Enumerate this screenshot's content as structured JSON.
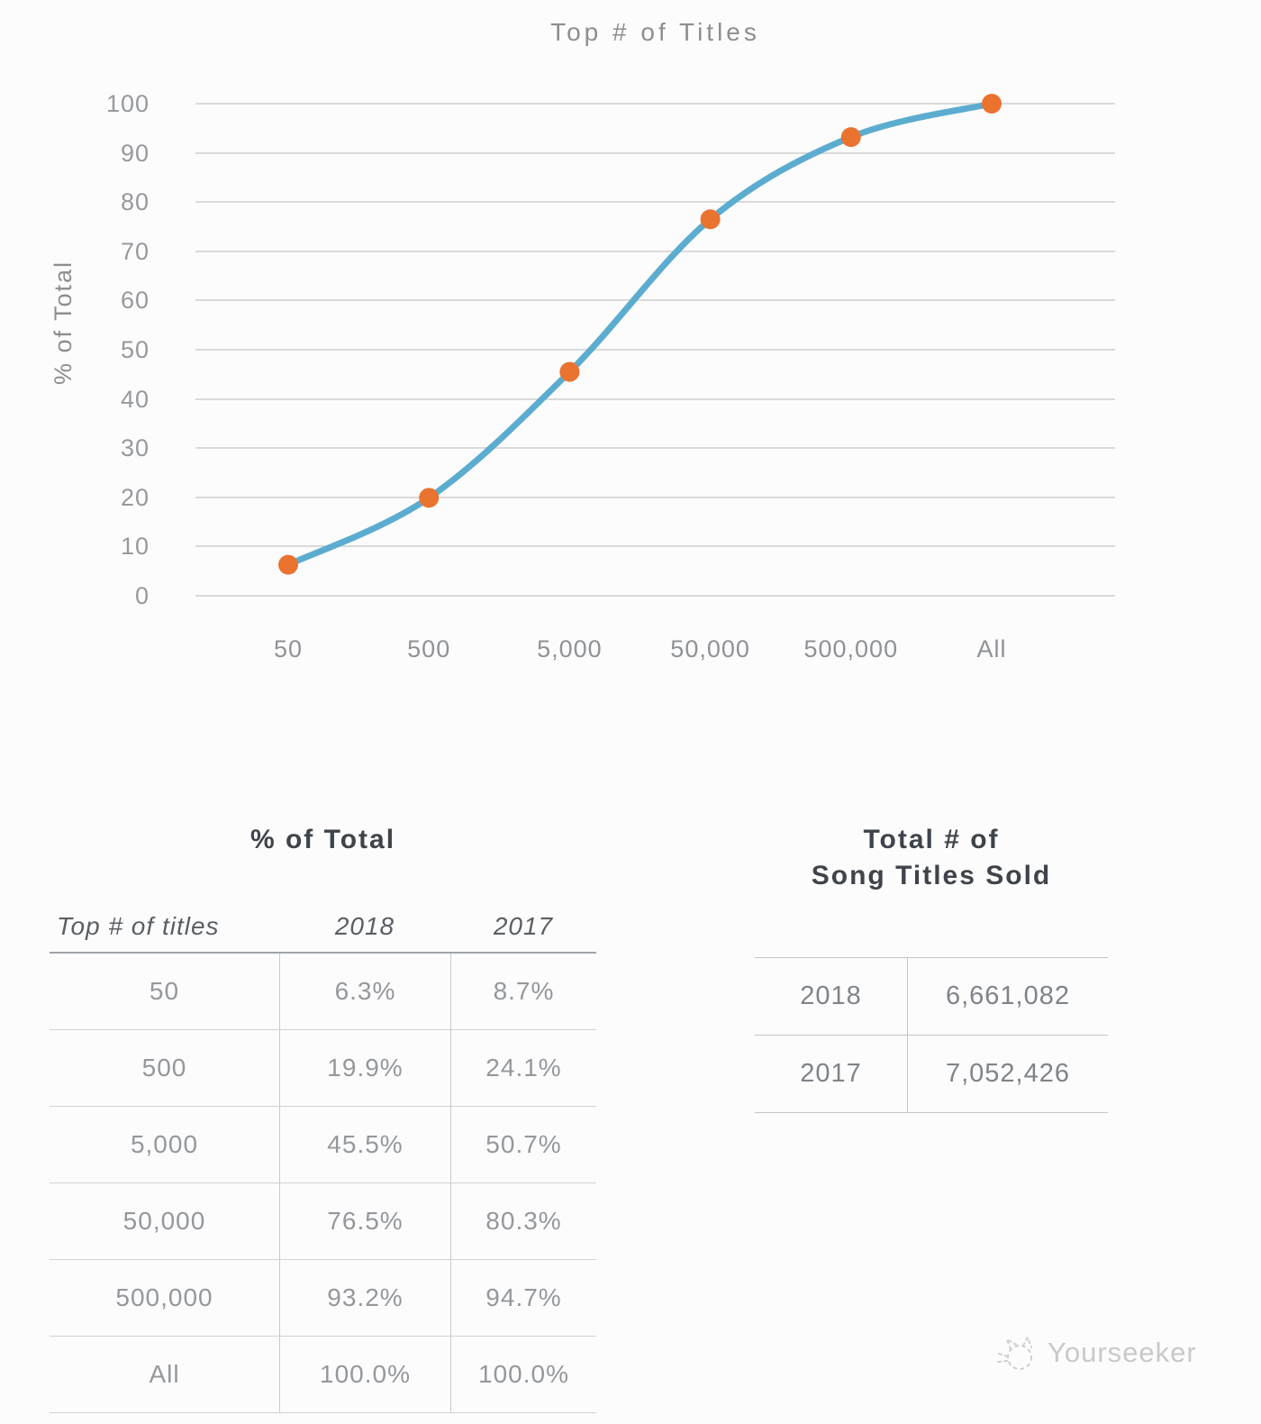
{
  "chart_data": [
    {
      "type": "line",
      "title": "Top # of Titles",
      "xlabel": "",
      "ylabel": "% of Total",
      "categories": [
        "50",
        "500",
        "5,000",
        "50,000",
        "500,000",
        "All"
      ],
      "series": [
        {
          "name": "2018",
          "values": [
            6.3,
            19.9,
            45.5,
            76.5,
            93.2,
            100.0
          ]
        }
      ],
      "ylim": [
        0,
        100
      ],
      "yticks": [
        0,
        10,
        20,
        30,
        40,
        50,
        60,
        70,
        80,
        90,
        100
      ],
      "grid": "horizontal-only",
      "legend": "none",
      "line_color": "#5cacd0",
      "marker_color": "#ea7330",
      "gridline_color": "#dadada"
    },
    {
      "type": "table",
      "title": "% of Total",
      "columns": [
        "Top # of titles",
        "2018",
        "2017"
      ],
      "rows": [
        [
          "50",
          "6.3%",
          "8.7%"
        ],
        [
          "500",
          "19.9%",
          "24.1%"
        ],
        [
          "5,000",
          "45.5%",
          "50.7%"
        ],
        [
          "50,000",
          "76.5%",
          "80.3%"
        ],
        [
          "500,000",
          "93.2%",
          "94.7%"
        ],
        [
          "All",
          "100.0%",
          "100.0%"
        ]
      ]
    },
    {
      "type": "table",
      "title": "Total # of Song Titles Sold",
      "title_lines": [
        "Total # of",
        "Song Titles Sold"
      ],
      "rows": [
        [
          "2018",
          "6,661,082"
        ],
        [
          "2017",
          "7,052,426"
        ]
      ]
    }
  ],
  "watermark": {
    "text": "Yourseeker",
    "icon": "cat-doodle-icon"
  }
}
